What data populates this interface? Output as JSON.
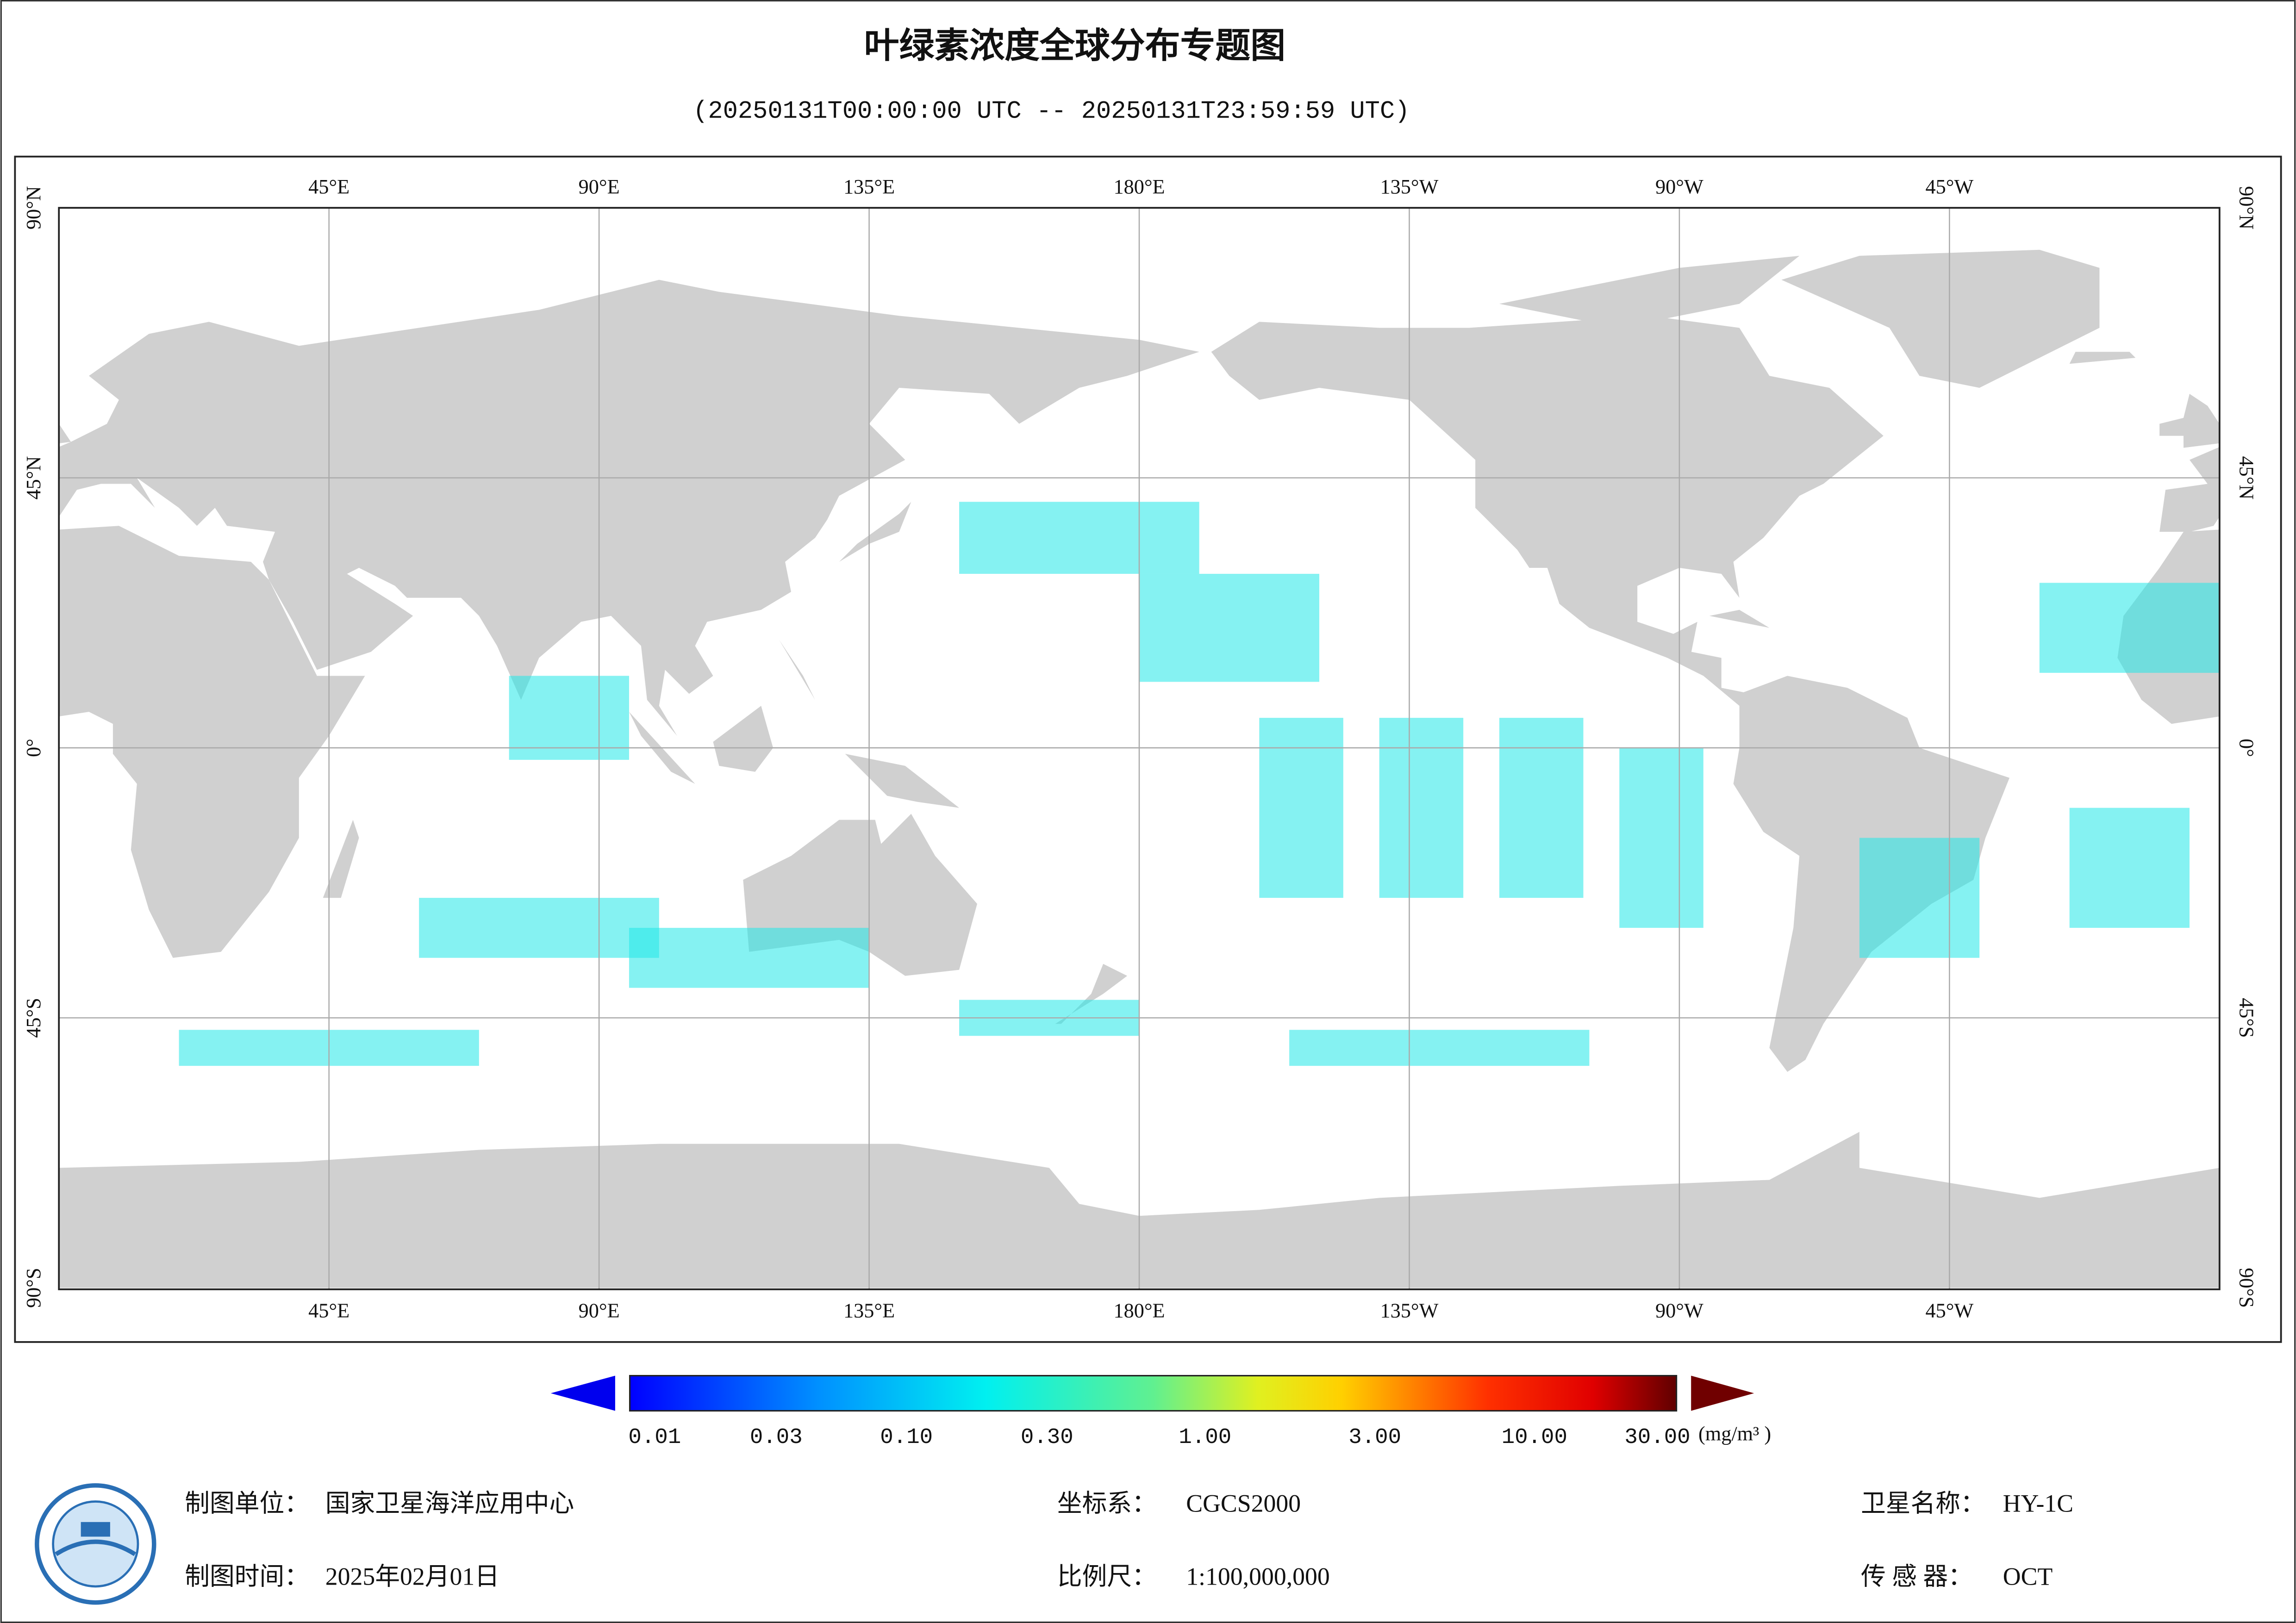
{
  "header": {
    "title": "叶绿素浓度全球分布专题图",
    "subtitle": "(20250131T00:00:00 UTC -- 20250131T23:59:59 UTC)"
  },
  "map": {
    "longitude_labels": [
      "45°E",
      "90°E",
      "135°E",
      "180°E",
      "135°W",
      "90°W",
      "45°W"
    ],
    "latitude_labels": [
      "90°N",
      "45°N",
      "0°",
      "45°S",
      "90°S"
    ]
  },
  "colorbar": {
    "ticks": [
      "0.01",
      "0.03",
      "0.10",
      "0.30",
      "1.00",
      "3.00",
      "10.00",
      "30.00"
    ],
    "unit": "(mg/m³ )"
  },
  "footer": {
    "producer": {
      "label": "制图单位：",
      "value": "国家卫星海洋应用中心"
    },
    "date": {
      "label": "制图时间：",
      "value": "2025年02月01日"
    },
    "crs": {
      "label": "坐标系：",
      "value": "CGCS2000"
    },
    "scale": {
      "label": "比例尺：",
      "value": "1:100,000,000"
    },
    "satellite": {
      "label": "卫星名称：",
      "value": "HY-1C"
    },
    "sensor": {
      "label": "传 感 器：",
      "value": "OCT"
    }
  }
}
